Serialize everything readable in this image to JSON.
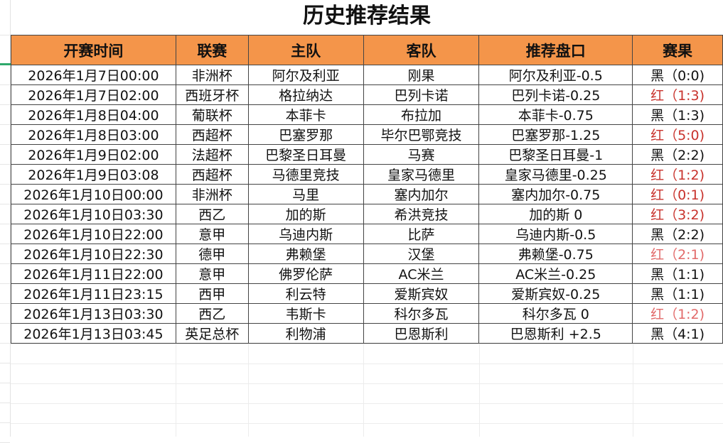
{
  "title": "历史推荐结果",
  "colors": {
    "header_bg": "#f4954a",
    "win": "#c8322c",
    "win_light": "#e26a6a",
    "loss": "#111111"
  },
  "columns": [
    "开赛时间",
    "联赛",
    "主队",
    "客队",
    "推荐盘口",
    "赛果"
  ],
  "rows": [
    {
      "time": "2026年1月7日00:00",
      "league": "非洲杯",
      "home": "阿尔及利亚",
      "away": "刚果",
      "pick": "阿尔及利亚-0.5",
      "result": "黑（0:0)",
      "status": "loss"
    },
    {
      "time": "2026年1月7日02:00",
      "league": "西班牙杯",
      "home": "格拉纳达",
      "away": "巴列卡诺",
      "pick": "巴列卡诺-0.25",
      "result": "红（1:3)",
      "status": "win"
    },
    {
      "time": "2026年1月8日04:00",
      "league": "葡联杯",
      "home": "本菲卡",
      "away": "布拉加",
      "pick": "本菲卡-0.75",
      "result": "黑（1:3)",
      "status": "loss"
    },
    {
      "time": "2026年1月8日03:00",
      "league": "西超杯",
      "home": "巴塞罗那",
      "away": "毕尔巴鄂竞技",
      "pick": "巴塞罗那-1.25",
      "result": "红（5:0)",
      "status": "win"
    },
    {
      "time": "2026年1月9日02:00",
      "league": "法超杯",
      "home": "巴黎圣日耳曼",
      "away": "马赛",
      "pick": "巴黎圣日耳曼-1",
      "result": "黑（2:2)",
      "status": "loss"
    },
    {
      "time": "2026年1月9日03:08",
      "league": "西超杯",
      "home": "马德里竞技",
      "away": "皇家马德里",
      "pick": "皇家马德里-0.25",
      "result": "红（1:2)",
      "status": "win"
    },
    {
      "time": "2026年1月10日00:00",
      "league": "非洲杯",
      "home": "马里",
      "away": "塞内加尔",
      "pick": "塞内加尔-0.75",
      "result": "红（0:1)",
      "status": "win"
    },
    {
      "time": "2026年1月10日03:30",
      "league": "西乙",
      "home": "加的斯",
      "away": "希洪竞技",
      "pick": "加的斯 0",
      "result": "红（3:2)",
      "status": "win"
    },
    {
      "time": "2026年1月10日22:00",
      "league": "意甲",
      "home": "乌迪内斯",
      "away": "比萨",
      "pick": "乌迪内斯-0.5",
      "result": "黑（2:2)",
      "status": "loss"
    },
    {
      "time": "2026年1月10日22:30",
      "league": "德甲",
      "home": "弗赖堡",
      "away": "汉堡",
      "pick": "弗赖堡-0.75",
      "result": "红（2:1)",
      "status": "win-light"
    },
    {
      "time": "2026年1月11日22:00",
      "league": "意甲",
      "home": "佛罗伦萨",
      "away": "AC米兰",
      "pick": "AC米兰-0.25",
      "result": "黑（1:1)",
      "status": "loss"
    },
    {
      "time": "2026年1月11日23:15",
      "league": "西甲",
      "home": "利云特",
      "away": "爱斯宾奴",
      "pick": "爱斯宾奴-0.25",
      "result": "黑（1:1)",
      "status": "loss"
    },
    {
      "time": "2026年1月13日03:30",
      "league": "西乙",
      "home": "韦斯卡",
      "away": "科尔多瓦",
      "pick": "科尔多瓦 0",
      "result": "红（1:2)",
      "status": "win-light"
    },
    {
      "time": "2026年1月13日03:45",
      "league": "英足总杯",
      "home": "利物浦",
      "away": "巴恩斯利",
      "pick": "巴恩斯利 +2.5",
      "result": "黑（4:1)",
      "status": "loss"
    }
  ]
}
